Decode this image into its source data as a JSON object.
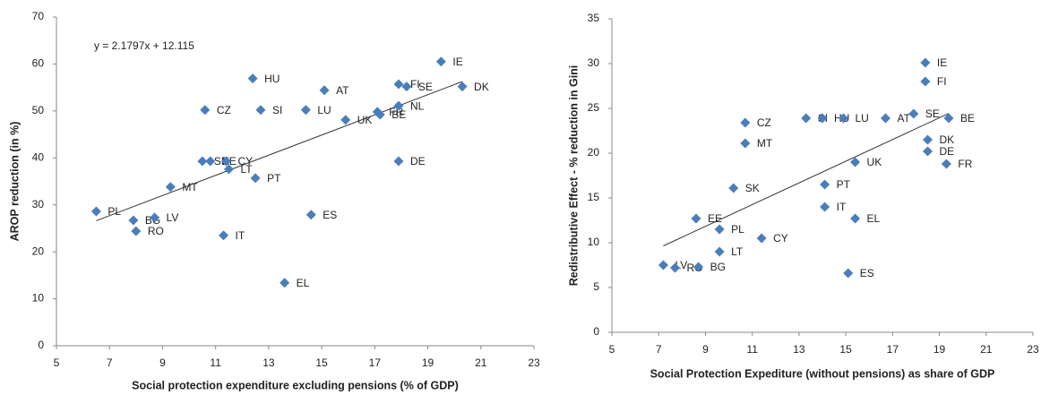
{
  "chart_data": [
    {
      "type": "scatter",
      "color": "#4a7ebb",
      "x_label": "Social protection expenditure excluding pensions (% of GDP)",
      "y_label": "AROP reduction (in %)",
      "equation": "y = 2.1797x + 12.115",
      "trendline": true,
      "xlim": [
        5,
        23
      ],
      "xticks": [
        5,
        7,
        9,
        11,
        13,
        15,
        17,
        19,
        21,
        23
      ],
      "ylim": [
        0,
        70
      ],
      "yticks": [
        0,
        10,
        20,
        30,
        40,
        50,
        60,
        70
      ],
      "labels": [
        "PL",
        "BG",
        "RO",
        "LV",
        "MT",
        "SK",
        "EE",
        "CY",
        "LT",
        "CZ",
        "IT",
        "SI",
        "HU",
        "PT",
        "ES",
        "EL",
        "LU",
        "AT",
        "UK",
        "FR",
        "BE",
        "NL",
        "FI",
        "SE",
        "DE",
        "IE",
        "DK"
      ],
      "x": [
        6.5,
        7.9,
        8.0,
        8.7,
        9.3,
        10.5,
        10.8,
        11.4,
        11.5,
        10.6,
        11.3,
        12.7,
        12.4,
        12.5,
        14.6,
        13.6,
        14.4,
        15.1,
        15.9,
        17.1,
        17.2,
        17.9,
        17.9,
        18.2,
        17.9,
        19.5,
        20.3
      ],
      "y": [
        28.6,
        26.7,
        24.4,
        27.3,
        33.8,
        39.3,
        39.3,
        39.3,
        37.6,
        50.2,
        23.5,
        50.2,
        56.9,
        35.7,
        27.9,
        13.4,
        50.2,
        54.4,
        48.1,
        49.8,
        49.2,
        51.1,
        55.7,
        55.2,
        39.3,
        60.5,
        55.2
      ]
    },
    {
      "type": "scatter",
      "color": "#4a7ebb",
      "x_label": "Social Protection Expediture (without pensions) as share of GDP",
      "y_label": "Redistributive Effect - % reduction in Gini",
      "trendline": true,
      "xlim": [
        5,
        23
      ],
      "xticks": [
        5,
        7,
        9,
        11,
        13,
        15,
        17,
        19,
        21,
        23
      ],
      "ylim": [
        0,
        35
      ],
      "yticks": [
        0,
        5,
        10,
        15,
        20,
        25,
        30,
        35
      ],
      "labels": [
        "LV",
        "RO",
        "BG",
        "EE",
        "PL",
        "LT",
        "SK",
        "CY",
        "CZ",
        "MT",
        "SI",
        "HU",
        "LU",
        "PT",
        "IT",
        "EL",
        "ES",
        "UK",
        "AT",
        "SE",
        "IE",
        "FI",
        "DK",
        "DE",
        "FR",
        "BE"
      ],
      "x": [
        7.2,
        7.7,
        8.7,
        8.6,
        9.6,
        9.6,
        10.2,
        11.4,
        10.7,
        10.7,
        13.3,
        14.0,
        14.9,
        14.1,
        14.1,
        15.4,
        15.1,
        15.4,
        16.7,
        17.9,
        18.4,
        18.4,
        18.5,
        18.5,
        19.3,
        19.4
      ],
      "y": [
        7.5,
        7.2,
        7.3,
        12.7,
        11.5,
        9.0,
        16.1,
        10.5,
        23.4,
        21.1,
        23.9,
        23.9,
        23.9,
        16.5,
        14.0,
        12.7,
        6.6,
        19.0,
        23.9,
        24.4,
        30.1,
        28.0,
        21.5,
        20.2,
        18.8,
        23.9
      ]
    }
  ]
}
